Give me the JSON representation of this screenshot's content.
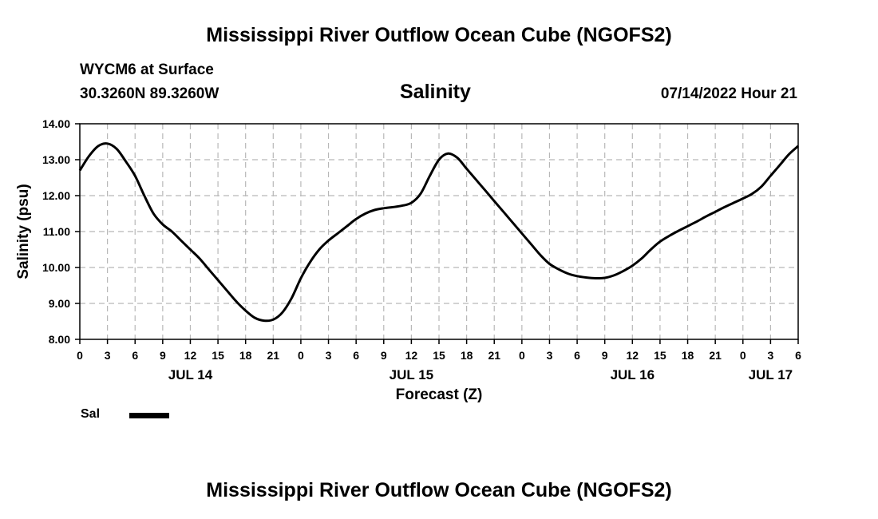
{
  "header": {
    "title": "Mississippi River Outflow Ocean Cube (NGOFS2)",
    "station": "WYCM6 at Surface",
    "coords": "30.3260N  89.3260W",
    "variable": "Salinity",
    "datetime": "07/14/2022 Hour 21"
  },
  "footer": {
    "title": "Mississippi River Outflow Ocean Cube (NGOFS2)"
  },
  "legend": {
    "label": "Sal",
    "color": "#000000"
  },
  "chart_data": {
    "type": "line",
    "title": "Salinity",
    "xlabel": "Forecast (Z)",
    "ylabel": "Salinity (psu)",
    "xlim": [
      0,
      78
    ],
    "ylim": [
      8.0,
      14.0
    ],
    "grid": true,
    "x_unit": "forecast hours from JUL 14 00Z",
    "yticks": [
      8.0,
      9.0,
      10.0,
      11.0,
      12.0,
      13.0,
      14.0
    ],
    "ytick_labels": [
      "8.00",
      "9.00",
      "10.00",
      "11.00",
      "12.00",
      "13.00",
      "14.00"
    ],
    "xticks": [
      0,
      3,
      6,
      9,
      12,
      15,
      18,
      21,
      24,
      27,
      30,
      33,
      36,
      39,
      42,
      45,
      48,
      51,
      54,
      57,
      60,
      63,
      66,
      69,
      72,
      75,
      78
    ],
    "xtick_labels": [
      "0",
      "3",
      "6",
      "9",
      "12",
      "15",
      "18",
      "21",
      "0",
      "3",
      "6",
      "9",
      "12",
      "15",
      "18",
      "21",
      "0",
      "3",
      "6",
      "9",
      "12",
      "15",
      "18",
      "21",
      "0",
      "3",
      "6"
    ],
    "day_labels": [
      {
        "x": 12,
        "label": "JUL 14"
      },
      {
        "x": 36,
        "label": "JUL 15"
      },
      {
        "x": 60,
        "label": "JUL 16"
      },
      {
        "x": 75,
        "label": "JUL 17"
      }
    ],
    "series": [
      {
        "name": "Sal",
        "color": "#000000",
        "x": [
          0,
          1,
          2,
          3,
          4,
          5,
          6,
          7,
          8,
          9,
          10,
          11,
          12,
          13,
          14,
          15,
          16,
          17,
          18,
          19,
          20,
          21,
          22,
          23,
          24,
          25,
          26,
          27,
          28,
          29,
          30,
          31,
          32,
          33,
          34,
          35,
          36,
          37,
          38,
          39,
          40,
          41,
          42,
          43,
          44,
          45,
          46,
          47,
          48,
          49,
          50,
          51,
          52,
          53,
          54,
          55,
          56,
          57,
          58,
          59,
          60,
          61,
          62,
          63,
          64,
          65,
          66,
          67,
          68,
          69,
          70,
          71,
          72,
          73,
          74,
          75,
          76,
          77,
          78
        ],
        "values": [
          12.7,
          13.1,
          13.38,
          13.45,
          13.3,
          12.95,
          12.55,
          12.0,
          11.5,
          11.2,
          11.0,
          10.75,
          10.5,
          10.25,
          9.95,
          9.65,
          9.35,
          9.05,
          8.8,
          8.6,
          8.52,
          8.55,
          8.75,
          9.15,
          9.7,
          10.15,
          10.5,
          10.75,
          10.95,
          11.15,
          11.35,
          11.5,
          11.6,
          11.65,
          11.68,
          11.72,
          11.8,
          12.05,
          12.55,
          13.0,
          13.17,
          13.05,
          12.75,
          12.45,
          12.15,
          11.85,
          11.55,
          11.25,
          10.95,
          10.65,
          10.35,
          10.1,
          9.95,
          9.83,
          9.76,
          9.72,
          9.7,
          9.71,
          9.78,
          9.9,
          10.05,
          10.25,
          10.5,
          10.72,
          10.88,
          11.02,
          11.15,
          11.28,
          11.42,
          11.55,
          11.68,
          11.8,
          11.92,
          12.05,
          12.25,
          12.55,
          12.85,
          13.15,
          13.38
        ]
      }
    ]
  }
}
